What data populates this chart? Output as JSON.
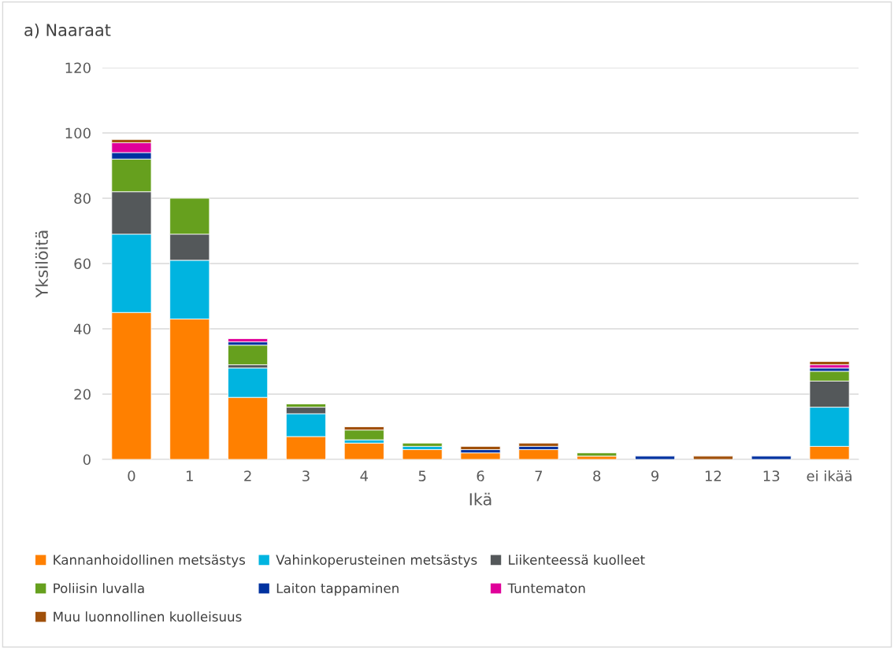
{
  "chart_data": {
    "type": "bar",
    "title": "a) Naaraat",
    "xlabel": "Ikä",
    "ylabel": "Yksilöitä",
    "stacked": true,
    "grid": "y",
    "legend": "bottom",
    "categories": [
      "0",
      "1",
      "2",
      "3",
      "4",
      "5",
      "6",
      "7",
      "8",
      "9",
      "12",
      "13",
      "ei ikää"
    ],
    "ylim": [
      0,
      120
    ],
    "yticks": [
      0,
      20,
      40,
      60,
      80,
      100,
      120
    ],
    "series": [
      {
        "name": "Kannanhoidollinen metsästys",
        "color": "#ff8000",
        "values": [
          45,
          43,
          19,
          7,
          5,
          3,
          2,
          3,
          1,
          0,
          0,
          0,
          4
        ]
      },
      {
        "name": "Vahinkoperusteinen metsästys",
        "color": "#00b4e0",
        "values": [
          24,
          18,
          9,
          7,
          1,
          1,
          0,
          0,
          0,
          0,
          0,
          0,
          12
        ]
      },
      {
        "name": "Liikenteessä kuolleet",
        "color": "#54585a",
        "values": [
          13,
          8,
          1,
          2,
          0,
          0,
          0,
          0,
          0,
          0,
          0,
          0,
          8
        ]
      },
      {
        "name": "Poliisin luvalla",
        "color": "#66a01e",
        "values": [
          10,
          11,
          6,
          1,
          3,
          1,
          0,
          0,
          1,
          0,
          0,
          0,
          3
        ]
      },
      {
        "name": "Laiton tappaminen",
        "color": "#0032a0",
        "values": [
          2,
          0,
          1,
          0,
          0,
          0,
          1,
          1,
          0,
          1,
          0,
          1,
          1
        ]
      },
      {
        "name": "Tuntematon",
        "color": "#e0009a",
        "values": [
          3,
          0,
          1,
          0,
          0,
          0,
          0,
          0,
          0,
          0,
          0,
          0,
          1
        ]
      },
      {
        "name": "Muu luonnollinen kuolleisuus",
        "color": "#a0500a",
        "values": [
          1,
          0,
          0,
          0,
          1,
          0,
          1,
          1,
          0,
          0,
          1,
          0,
          1
        ]
      }
    ]
  }
}
